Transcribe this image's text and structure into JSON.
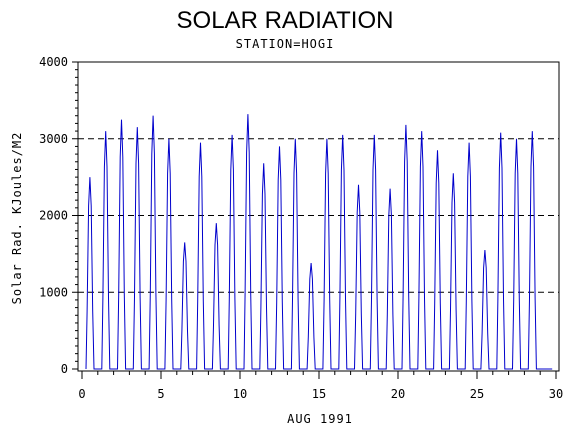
{
  "chart_data": {
    "type": "line",
    "title": "SOLAR RADIATION",
    "subtitle": "STATION=HOGI",
    "xlabel": "AUG 1991",
    "ylabel": "Solar Rad. KJoules/M2",
    "xlim": [
      0,
      30
    ],
    "ylim": [
      0,
      4000
    ],
    "x_ticks": [
      "0",
      "5",
      "10",
      "15",
      "20",
      "25",
      "30"
    ],
    "y_ticks": [
      "0",
      "1000",
      "2000",
      "3000",
      "4000"
    ],
    "grid": "horizontal dashed",
    "series": [
      {
        "color": "#0000cc",
        "daily_peaks": [
          2500,
          3100,
          3250,
          3150,
          3300,
          3000,
          1650,
          2950,
          1900,
          3050,
          3320,
          2680,
          2900,
          3000,
          1380,
          3000,
          3050,
          2400,
          3050,
          2350,
          3180,
          3100,
          2850,
          2550,
          2950,
          1550,
          3080,
          3000,
          3100,
          0
        ]
      }
    ]
  }
}
